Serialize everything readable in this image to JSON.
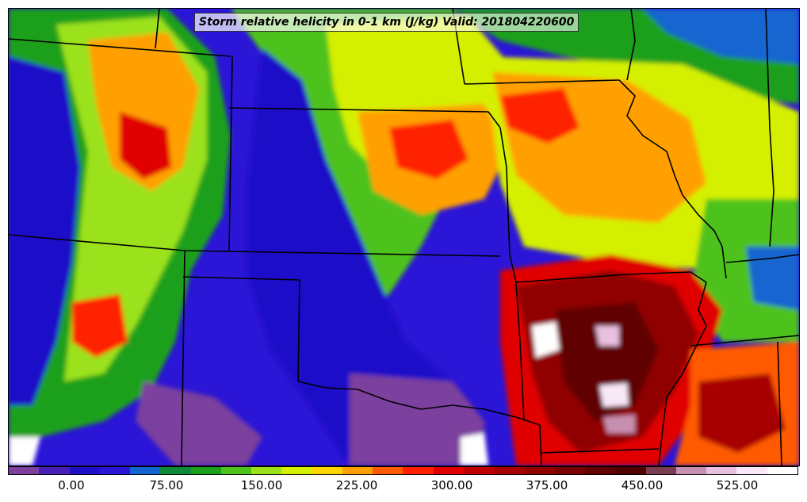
{
  "title": "Storm relative helicity in 0-1 km (J/kg) Valid: 201804220600",
  "colorbar": {
    "colors": [
      "#7b3f9e",
      "#4a1fb8",
      "#1f10c8",
      "#2b15d6",
      "#1565d0",
      "#0f8a3a",
      "#1aa01a",
      "#4dc21a",
      "#9be21a",
      "#d4f000",
      "#ffd400",
      "#ffa000",
      "#ff5a00",
      "#ff2000",
      "#e00000",
      "#c00000",
      "#a80000",
      "#900000",
      "#780000",
      "#600000",
      "#500000",
      "#7a3c50",
      "#c890b0",
      "#e8c0e0",
      "#f8e8f8",
      "#ffffff"
    ],
    "tick_labels": [
      "0.00",
      "75.00",
      "150.00",
      "225.00",
      "300.00",
      "375.00",
      "450.00",
      "525.00"
    ]
  },
  "map": {
    "background_color": "#2b15d6",
    "border_color": "#000000"
  }
}
